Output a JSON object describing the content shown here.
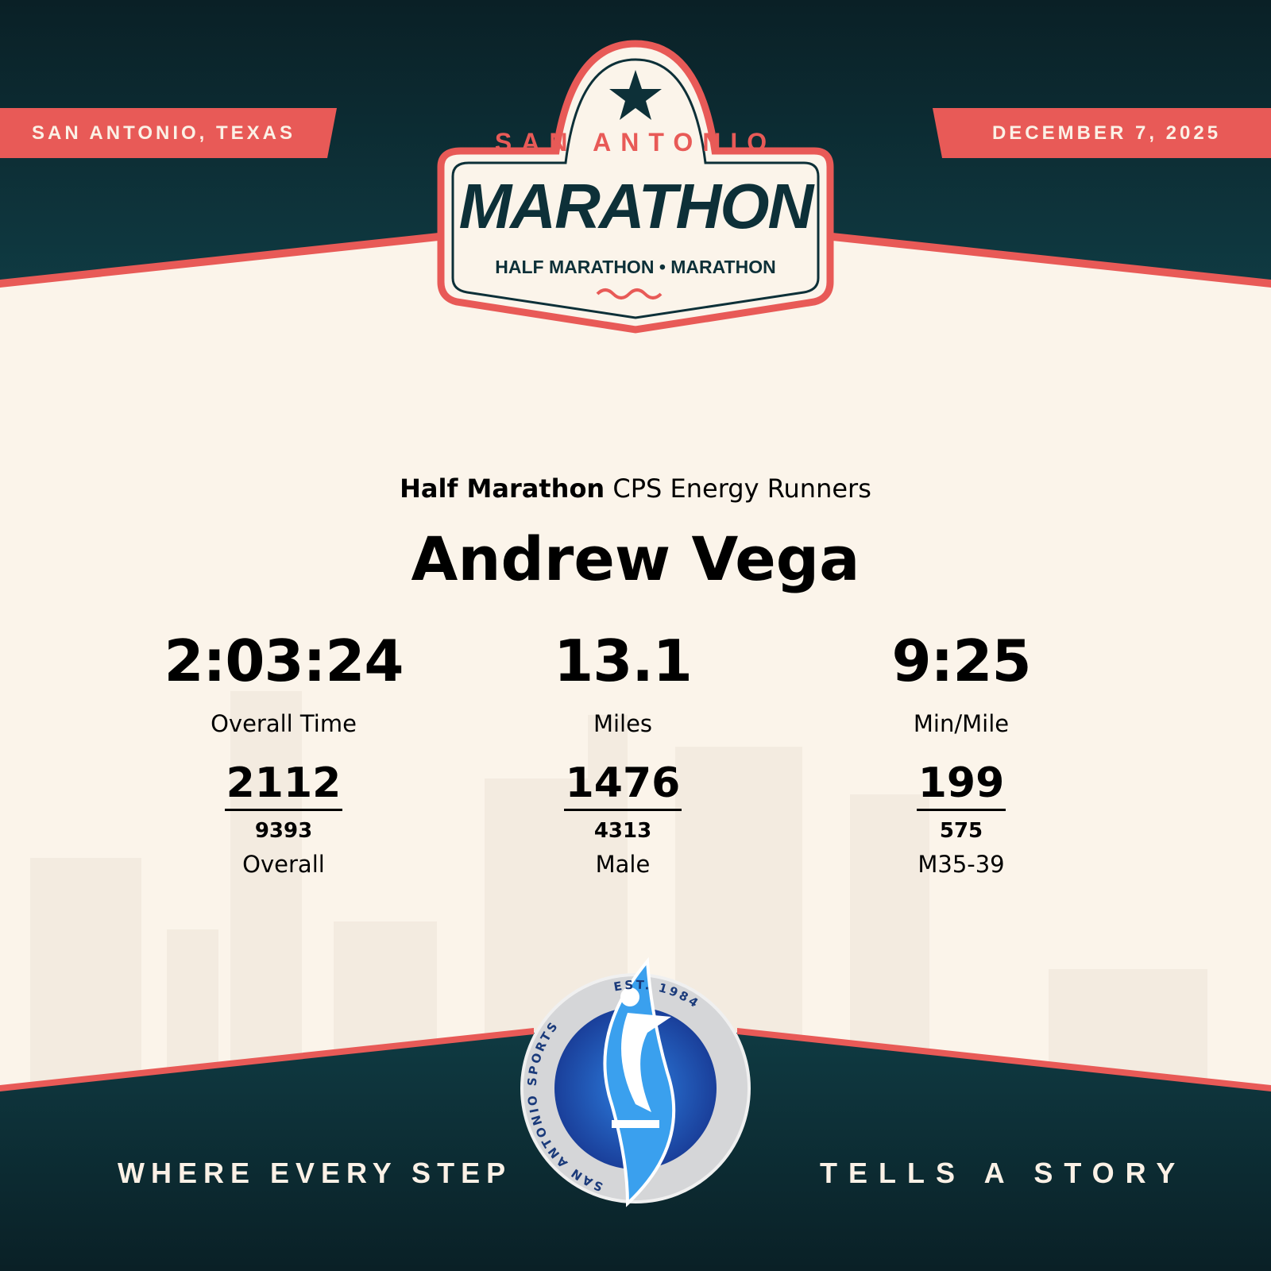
{
  "header": {
    "location": "SAN ANTONIO, TEXAS",
    "date": "DECEMBER 7, 2025",
    "logo": {
      "top": "SAN ANTONIO",
      "main": "MARATHON",
      "sub": "HALF MARATHON • MARATHON"
    }
  },
  "result": {
    "race": "Half Marathon",
    "team": "CPS Energy Runners",
    "name": "Andrew Vega",
    "stats": [
      {
        "value": "2:03:24",
        "label": "Overall Time"
      },
      {
        "value": "13.1",
        "label": "Miles"
      },
      {
        "value": "9:25",
        "label": "Min/Mile"
      }
    ],
    "ranks": [
      {
        "place": "2112",
        "total": "9393",
        "label": "Overall"
      },
      {
        "place": "1476",
        "total": "4313",
        "label": "Male"
      },
      {
        "place": "199",
        "total": "575",
        "label": "M35-39"
      }
    ]
  },
  "footer": {
    "tagline_left": "WHERE EVERY STEP",
    "tagline_right": "TELLS A STORY",
    "sponsor_logo": {
      "ring_left": "SAN ANTONIO SPORTS",
      "ring_right": "EST. 1984"
    }
  },
  "colors": {
    "dark_teal": "#0d3038",
    "coral": "#e85a57",
    "cream": "#fbf4ea",
    "logo_blue": "#1f4fa8"
  }
}
